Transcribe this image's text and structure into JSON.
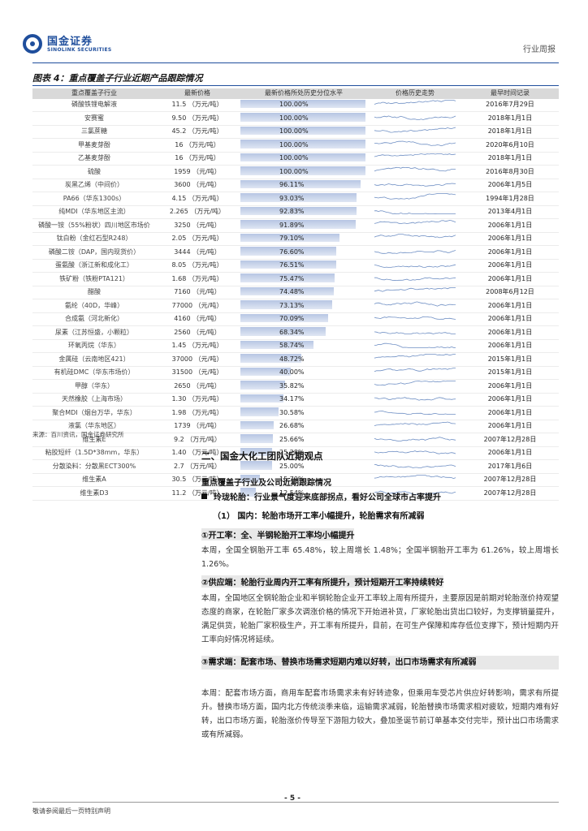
{
  "header": {
    "logo_cn": "国金证券",
    "logo_en": "SINOLINK SECURITIES",
    "report_type": "行业周报"
  },
  "figure": {
    "title": "图表 4：重点覆盖子行业近期产品跟踪情况",
    "columns": [
      "重点覆盖子行业",
      "最新价格",
      "最新价格所处历史分位水平",
      "价格历史走势",
      "最早时间记录"
    ],
    "rows": [
      {
        "name": "磷酸铁锂电解液",
        "price": "11.5 （万元/吨）",
        "pct": "100.00%",
        "pct_val": 100.0,
        "date": "2016年7月29日"
      },
      {
        "name": "安赛蜜",
        "price": "9.50 （万元/吨）",
        "pct": "100.00%",
        "pct_val": 100.0,
        "date": "2018年1月1日"
      },
      {
        "name": "三氯蔗糖",
        "price": "45.2 （万元/吨）",
        "pct": "100.00%",
        "pct_val": 100.0,
        "date": "2018年1月1日"
      },
      {
        "name": "甲基麦芽酚",
        "price": "16 （万元/吨）",
        "pct": "100.00%",
        "pct_val": 100.0,
        "date": "2020年6月10日"
      },
      {
        "name": "乙基麦芽酚",
        "price": "16 （万元/吨）",
        "pct": "100.00%",
        "pct_val": 100.0,
        "date": "2018年1月1日"
      },
      {
        "name": "硫酸",
        "price": "1959 （元/吨）",
        "pct": "100.00%",
        "pct_val": 100.0,
        "date": "2016年8月30日"
      },
      {
        "name": "炭黑乙烯（中间价）",
        "price": "3600 （元/吨）",
        "pct": "96.11%",
        "pct_val": 96.11,
        "date": "2006年1月5日"
      },
      {
        "name": "PA66（华东1300s）",
        "price": "4.15 （万元/吨）",
        "pct": "93.03%",
        "pct_val": 93.03,
        "date": "1994年1月28日"
      },
      {
        "name": "纯MDI（华东地区主流）",
        "price": "2.265 （万元/吨）",
        "pct": "92.83%",
        "pct_val": 92.83,
        "date": "2013年4月1日"
      },
      {
        "name": "磷酸一铵（55%粉状）四川地区市场价",
        "price": "3250 （元/吨）",
        "pct": "91.89%",
        "pct_val": 91.89,
        "date": "2006年1月1日"
      },
      {
        "name": "钛白粉（金红石型R248）",
        "price": "2.05 （万元/吨）",
        "pct": "79.10%",
        "pct_val": 79.1,
        "date": "2006年1月1日"
      },
      {
        "name": "磷酸二铵（DAP，国内现货价）",
        "price": "3444 （元/吨）",
        "pct": "76.60%",
        "pct_val": 76.6,
        "date": "2006年1月1日"
      },
      {
        "name": "蛋氨酸（浙江新和成化工）",
        "price": "8.05 （万元/吨）",
        "pct": "76.51%",
        "pct_val": 76.51,
        "date": "2006年1月1日"
      },
      {
        "name": "铁矿粉（铁粉PTA121）",
        "price": "1.68 （万元/吨）",
        "pct": "75.47%",
        "pct_val": 75.47,
        "date": "2006年1月1日"
      },
      {
        "name": "醋酸",
        "price": "7160 （元/吨）",
        "pct": "74.48%",
        "pct_val": 74.48,
        "date": "2008年6月12日"
      },
      {
        "name": "氨纶（40D，华峰）",
        "price": "77000 （元/吨）",
        "pct": "73.13%",
        "pct_val": 73.13,
        "date": "2006年1月1日"
      },
      {
        "name": "合成氨（河北新化）",
        "price": "4160 （元/吨）",
        "pct": "70.09%",
        "pct_val": 70.09,
        "date": "2006年1月1日"
      },
      {
        "name": "尿素（江苏恒盛，小颗粒）",
        "price": "2560 （元/吨）",
        "pct": "68.34%",
        "pct_val": 68.34,
        "date": "2006年1月1日"
      },
      {
        "name": "环氧丙烷（华东）",
        "price": "1.45 （万元/吨）",
        "pct": "58.74%",
        "pct_val": 58.74,
        "date": "2006年1月1日"
      },
      {
        "name": "金属硅（云南地区421）",
        "price": "37000 （元/吨）",
        "pct": "48.72%",
        "pct_val": 48.72,
        "date": "2015年1月1日"
      },
      {
        "name": "有机硅DMC（华东市场价）",
        "price": "31500 （元/吨）",
        "pct": "40.00%",
        "pct_val": 40.0,
        "date": "2015年1月1日"
      },
      {
        "name": "甲醇（华东）",
        "price": "2650 （元/吨）",
        "pct": "35.82%",
        "pct_val": 35.82,
        "date": "2006年1月1日"
      },
      {
        "name": "天然橡胶（上海市场）",
        "price": "1.30 （万元/吨）",
        "pct": "34.17%",
        "pct_val": 34.17,
        "date": "2006年1月1日"
      },
      {
        "name": "聚合MDI（烟台万华，华东）",
        "price": "1.98 （万元/吨）",
        "pct": "30.58%",
        "pct_val": 30.58,
        "date": "2006年1月1日"
      },
      {
        "name": "液氯（华东地区）",
        "price": "1739 （元/吨）",
        "pct": "26.68%",
        "pct_val": 26.68,
        "date": "2006年1月1日"
      },
      {
        "name": "维生素E",
        "price": "9.2 （万元/吨）",
        "pct": "25.66%",
        "pct_val": 25.66,
        "date": "2007年12月28日"
      },
      {
        "name": "粘胶短纤（1.5D*38mm，华东）",
        "price": "1.40 （万元/吨）",
        "pct": "25.28%",
        "pct_val": 25.28,
        "date": "2006年1月1日"
      },
      {
        "name": "分散染料：分散黑ECT300%",
        "price": "2.7 （万元/吨）",
        "pct": "25.00%",
        "pct_val": 25.0,
        "date": "2017年1月6日"
      },
      {
        "name": "维生素A",
        "price": "30.5 （万元/吨）",
        "pct": "15.79%",
        "pct_val": 15.79,
        "date": "2007年12月28日"
      },
      {
        "name": "维生素D3",
        "price": "11.2 （万元/吨）",
        "pct": "12.54%",
        "pct_val": 12.54,
        "date": "2007年12月28日"
      }
    ],
    "source": "来源：百川资讯，国金证券研究所"
  },
  "section": {
    "title": "二、国金大化工团队近期观点",
    "subtitle": "重点覆盖子行业及公司近期跟踪情况",
    "bullet": "玲珑轮胎：行业景气度迎来底部拐点，看好公司全球市占率提升",
    "sub1": "（1）  国内：轮胎市场开工率小幅提升，轮胎需求有所减弱",
    "p1_head": "①开工率：全、半钢轮胎开工率均小幅提升",
    "p1_text": "本周，全国全钢胎开工率 65.48%，较上周增长 1.48%；全国半钢胎开工率为 61.26%，较上周增长 1.26%。",
    "p2_head": "②供应端：轮胎行业周内开工率有所提升，预计短期开工率持续转好",
    "p2_text": "本周，全国地区全钢轮胎企业和半钢轮胎企业开工率较上周有所提升，主要原因是前期对轮胎涨价持观望态度的商家，在轮胎厂家多次调涨价格的情况下开始进补货，厂家轮胎出货出口较好，为支撑销量提升，满足供货，轮胎厂家积极生产，开工率有所提升，目前，在可生产保障和库存低位支撑下，预计短期内开工率向好情况将延续。",
    "p3_head": "③需求端：配套市场、替换市场需求短期内难以好转，出口市场需求有所减弱",
    "p3_text": "本周：配套市场方面，商用车配套市场需求未有好转迹象，但乘用车受芯片供应好转影响，需求有所提升。替换市场方面，国内北方传统淡季来临，运输需求减弱，轮胎替换市场需求相对疲软，短期内难有好转，出口市场方面，轮胎涨价传导至下游阻力较大，叠加圣诞节前订单基本交付完毕，预计出口市场需求或有所减弱。"
  },
  "footer": {
    "page": "- 5 -",
    "note": "敬请参阅最后一页特别声明"
  }
}
